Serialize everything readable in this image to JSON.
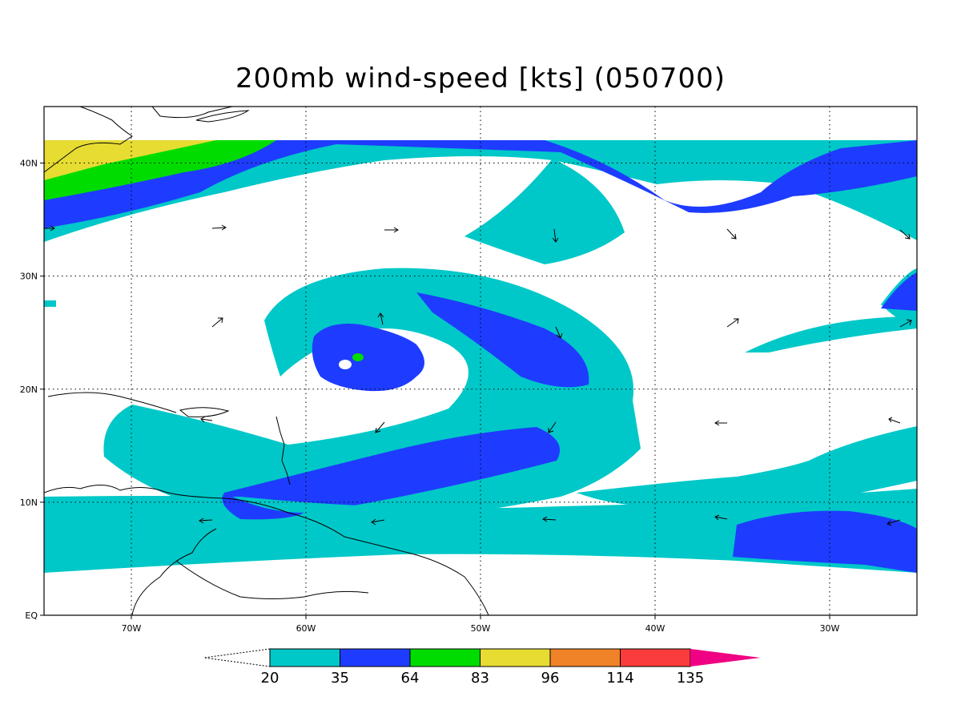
{
  "title": "200mb wind-speed [kts] (050700)",
  "map": {
    "lon_range": [
      -75,
      -25
    ],
    "lat_range": [
      0,
      45
    ],
    "lat_ticks": [
      {
        "value": 0,
        "label": "EQ"
      },
      {
        "value": 10,
        "label": "10N"
      },
      {
        "value": 20,
        "label": "20N"
      },
      {
        "value": 30,
        "label": "30N"
      },
      {
        "value": 40,
        "label": "40N"
      }
    ],
    "lon_ticks": [
      {
        "value": -70,
        "label": "70W"
      },
      {
        "value": -60,
        "label": "60W"
      },
      {
        "value": -50,
        "label": "50W"
      },
      {
        "value": -40,
        "label": "40W"
      },
      {
        "value": -30,
        "label": "30W"
      }
    ],
    "grid": "dotted"
  },
  "colorbar": {
    "levels": [
      "20",
      "35",
      "64",
      "83",
      "96",
      "114",
      "135"
    ],
    "colors": [
      "#00c8c8",
      "#1e3cff",
      "#00dc00",
      "#e6dc32",
      "#f08228",
      "#fa3c3c",
      "#f00082"
    ],
    "below_color": "#ffffff"
  }
}
